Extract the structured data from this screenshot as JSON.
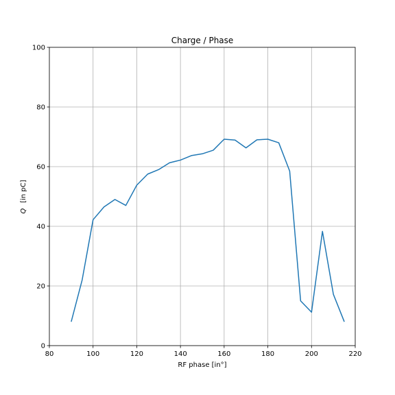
{
  "chart_data": {
    "type": "line",
    "title": "Charge / Phase",
    "xlabel": "RF phase [in°]",
    "ylabel_italic": "Q",
    "ylabel_rest": "[in  pC]",
    "xlim": [
      80,
      220
    ],
    "ylim": [
      0,
      100
    ],
    "xticks": [
      80,
      100,
      120,
      140,
      160,
      180,
      200,
      220
    ],
    "yticks": [
      0,
      20,
      40,
      60,
      80,
      100
    ],
    "grid": true,
    "series": [
      {
        "color": "#1f77b4",
        "x": [
          90,
          95,
          100,
          105,
          110,
          115,
          120,
          125,
          130,
          135,
          140,
          145,
          150,
          155,
          160,
          165,
          170,
          175,
          180,
          185,
          190,
          195,
          200,
          205,
          210,
          215
        ],
        "y": [
          8,
          22,
          42.2,
          46.5,
          49,
          47,
          53.8,
          57.5,
          59,
          61.3,
          62.2,
          63.7,
          64.3,
          65.5,
          69.2,
          68.9,
          66.3,
          69,
          69.2,
          68,
          58.5,
          15,
          11.2,
          38.3,
          17.2,
          8
        ]
      }
    ]
  }
}
